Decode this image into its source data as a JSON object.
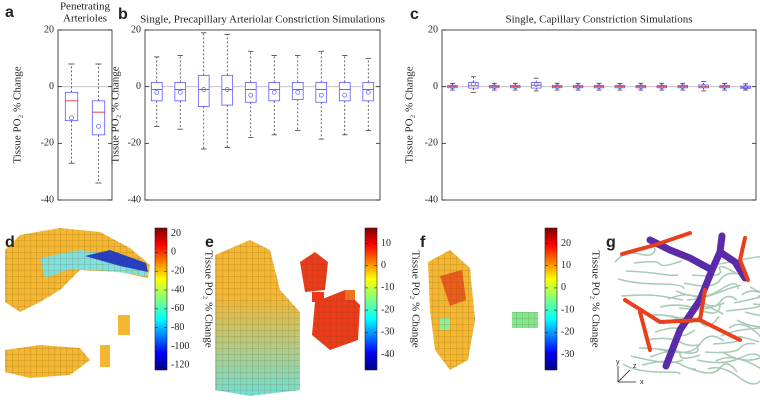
{
  "chart_data": [
    {
      "type": "box",
      "panel_label": "a",
      "title_lines": [
        "Penetrating",
        "Arterioles"
      ],
      "ylabel": "Tissue PO₂ % Change",
      "ylim": [
        -40,
        20
      ],
      "yticks": [
        -40,
        -20,
        0,
        20
      ],
      "zero_line": true,
      "box_color": "#5a5aff",
      "median_color": "#e0303a",
      "boxes": [
        {
          "whisker_low": -27,
          "q1": -12,
          "median": -5,
          "q3": -2,
          "whisker_high": 8,
          "mean": -11
        },
        {
          "whisker_low": -34,
          "q1": -17,
          "median": -9,
          "q3": -5,
          "whisker_high": 8,
          "mean": -14
        }
      ]
    },
    {
      "type": "box",
      "panel_label": "b",
      "title": "Single, Precapillary Arteriolar Constriction Simulations",
      "ylabel": "Tissue PO₂ % Change",
      "ylim": [
        -40,
        20
      ],
      "yticks": [
        -40,
        -20,
        0,
        20
      ],
      "zero_line": true,
      "box_color": "#5a5aff",
      "median_color": "#e0303a",
      "boxes": [
        {
          "whisker_low": -14,
          "q1": -5,
          "median": -1,
          "q3": 1.5,
          "whisker_high": 10.5,
          "mean": -2
        },
        {
          "whisker_low": -15,
          "q1": -5,
          "median": -1,
          "q3": 1.5,
          "whisker_high": 11,
          "mean": -2
        },
        {
          "whisker_low": -22,
          "q1": -7,
          "median": -1,
          "q3": 4,
          "whisker_high": 19,
          "mean": -1
        },
        {
          "whisker_low": -21.5,
          "q1": -6.5,
          "median": -1,
          "q3": 4,
          "whisker_high": 18.5,
          "mean": -1
        },
        {
          "whisker_low": -18,
          "q1": -5.5,
          "median": -1,
          "q3": 1.5,
          "whisker_high": 12.5,
          "mean": -3
        },
        {
          "whisker_low": -17,
          "q1": -5,
          "median": -1,
          "q3": 1.5,
          "whisker_high": 11,
          "mean": -2
        },
        {
          "whisker_low": -15.5,
          "q1": -4.5,
          "median": -1,
          "q3": 1.5,
          "whisker_high": 11,
          "mean": -2
        },
        {
          "whisker_low": -18.5,
          "q1": -5.5,
          "median": -1,
          "q3": 1.5,
          "whisker_high": 12.5,
          "mean": -3
        },
        {
          "whisker_low": -17,
          "q1": -5,
          "median": -1,
          "q3": 1.5,
          "whisker_high": 11,
          "mean": -3
        },
        {
          "whisker_low": -15.5,
          "q1": -5,
          "median": -1,
          "q3": 1.5,
          "whisker_high": 10,
          "mean": -2
        }
      ]
    },
    {
      "type": "box",
      "panel_label": "c",
      "title": "Single, Capillary Constriction Simulations",
      "ylabel": "Tissue PO₂ % Change",
      "ylim": [
        -40,
        20
      ],
      "yticks": [
        -40,
        -20,
        0,
        20
      ],
      "zero_line": true,
      "box_color": "#5a5aff",
      "median_color": "#e0303a",
      "boxes": [
        {
          "whisker_low": -1.2,
          "q1": -0.4,
          "median": 0,
          "q3": 0.4,
          "whisker_high": 1.2,
          "mean": 0
        },
        {
          "whisker_low": -2,
          "q1": -0.5,
          "median": 0.3,
          "q3": 1.5,
          "whisker_high": 3.5,
          "mean": 1
        },
        {
          "whisker_low": -1.2,
          "q1": -0.4,
          "median": 0,
          "q3": 0.4,
          "whisker_high": 1.2,
          "mean": 0
        },
        {
          "whisker_low": -1.2,
          "q1": -0.4,
          "median": 0,
          "q3": 0.4,
          "whisker_high": 1.2,
          "mean": 0
        },
        {
          "whisker_low": -1.5,
          "q1": -0.5,
          "median": 0.5,
          "q3": 1.5,
          "whisker_high": 3,
          "mean": 0.8
        },
        {
          "whisker_low": -1.2,
          "q1": -0.4,
          "median": 0,
          "q3": 0.4,
          "whisker_high": 1.2,
          "mean": 0
        },
        {
          "whisker_low": -1.2,
          "q1": -0.4,
          "median": 0,
          "q3": 0.4,
          "whisker_high": 1.2,
          "mean": 0
        },
        {
          "whisker_low": -1.2,
          "q1": -0.4,
          "median": 0,
          "q3": 0.4,
          "whisker_high": 1.2,
          "mean": 0
        },
        {
          "whisker_low": -1.2,
          "q1": -0.4,
          "median": 0,
          "q3": 0.4,
          "whisker_high": 1.2,
          "mean": 0
        },
        {
          "whisker_low": -1.2,
          "q1": -0.4,
          "median": 0,
          "q3": 0.4,
          "whisker_high": 1.2,
          "mean": 0
        },
        {
          "whisker_low": -1.2,
          "q1": -0.4,
          "median": 0,
          "q3": 0.4,
          "whisker_high": 1.2,
          "mean": 0
        },
        {
          "whisker_low": -1.2,
          "q1": -0.4,
          "median": 0,
          "q3": 0.4,
          "whisker_high": 1.2,
          "mean": 0
        },
        {
          "whisker_low": -1.5,
          "q1": -0.4,
          "median": 0,
          "q3": 0.6,
          "whisker_high": 1.8,
          "mean": 0.2
        },
        {
          "whisker_low": -1.2,
          "q1": -0.4,
          "median": 0,
          "q3": 0.4,
          "whisker_high": 1.2,
          "mean": 0
        },
        {
          "whisker_low": -1.2,
          "q1": -0.6,
          "median": -0.2,
          "q3": 0.2,
          "whisker_high": 1,
          "mean": -0.2
        }
      ]
    },
    {
      "type": "colorbar",
      "panel_label": "d",
      "label": "Tissue PO₂ % Change",
      "clim": [
        -125,
        26
      ],
      "ticks": [
        20,
        0,
        -20,
        -40,
        -60,
        -80,
        -100,
        -120
      ]
    },
    {
      "type": "colorbar",
      "panel_label": "e",
      "label": "Tissue PO₂ % Change",
      "clim": [
        -47,
        17
      ],
      "ticks": [
        10,
        0,
        -10,
        -20,
        -30,
        -40
      ]
    },
    {
      "type": "colorbar",
      "panel_label": "f",
      "label": "Tissue PO₂ % Change",
      "clim": [
        -37,
        27
      ],
      "ticks": [
        20,
        10,
        0,
        -10,
        -20,
        -30
      ]
    },
    {
      "type": "image",
      "panel_label": "g",
      "axis_labels": [
        "x",
        "y",
        "z"
      ]
    }
  ]
}
